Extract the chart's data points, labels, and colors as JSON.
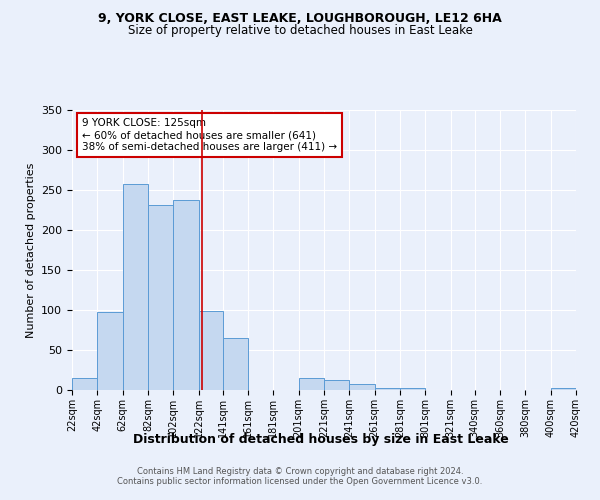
{
  "title1": "9, YORK CLOSE, EAST LEAKE, LOUGHBOROUGH, LE12 6HA",
  "title2": "Size of property relative to detached houses in East Leake",
  "xlabel": "Distribution of detached houses by size in East Leake",
  "ylabel": "Number of detached properties",
  "annotation_line1": "9 YORK CLOSE: 125sqm",
  "annotation_line2": "← 60% of detached houses are smaller (641)",
  "annotation_line3": "38% of semi-detached houses are larger (411) →",
  "footer1": "Contains HM Land Registry data © Crown copyright and database right 2024.",
  "footer2": "Contains public sector information licensed under the Open Government Licence v3.0.",
  "bin_labels": [
    "22sqm",
    "42sqm",
    "62sqm",
    "82sqm",
    "102sqm",
    "122sqm",
    "141sqm",
    "161sqm",
    "181sqm",
    "201sqm",
    "221sqm",
    "241sqm",
    "261sqm",
    "281sqm",
    "301sqm",
    "321sqm",
    "340sqm",
    "360sqm",
    "380sqm",
    "400sqm",
    "420sqm"
  ],
  "bar_values": [
    15,
    98,
    258,
    231,
    237,
    99,
    65,
    0,
    0,
    15,
    12,
    8,
    3,
    2,
    0,
    0,
    0,
    0,
    0,
    3
  ],
  "bar_left_edges": [
    22,
    42,
    62,
    82,
    102,
    122,
    141,
    161,
    181,
    201,
    221,
    241,
    261,
    281,
    301,
    321,
    340,
    360,
    380,
    400
  ],
  "bar_widths": [
    20,
    20,
    20,
    20,
    20,
    19,
    20,
    20,
    20,
    20,
    20,
    20,
    20,
    20,
    20,
    19,
    20,
    20,
    20,
    20
  ],
  "property_size": 125,
  "vline_color": "#cc0000",
  "bar_fill_color": "#c5d8f0",
  "bar_edge_color": "#5b9bd5",
  "background_color": "#eaf0fb",
  "grid_color": "#ffffff",
  "annotation_box_color": "#ffffff",
  "annotation_box_edge": "#cc0000",
  "ylim": [
    0,
    350
  ],
  "xlim": [
    22,
    420
  ],
  "yticks": [
    0,
    50,
    100,
    150,
    200,
    250,
    300,
    350
  ]
}
